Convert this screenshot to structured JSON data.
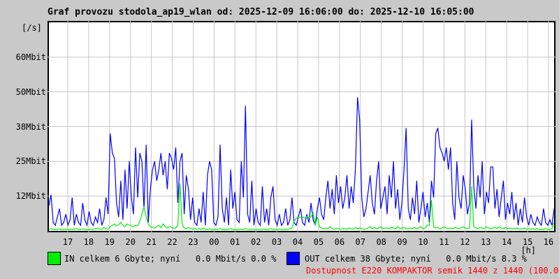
{
  "title": "Graf provozu stodola_ap19_wlan od: 2025-12-09 16:06:00 do: 2025-12-10 16:05:00",
  "colors": {
    "in_series": "#00ee00",
    "out_series": "#0000ff",
    "alert_text": "#ff0000",
    "background": "#c9c9c9",
    "plot_background": "#ffffff",
    "grid": "#c6c6c6",
    "frame": "#000000"
  },
  "y_axis": {
    "unit_label": "[/s]",
    "ticks": [
      {
        "label": "12Mbit",
        "value": 12.5
      },
      {
        "label": "25Mbit",
        "value": 25
      },
      {
        "label": "38Mbit",
        "value": 37.5
      },
      {
        "label": "50Mbit",
        "value": 50
      },
      {
        "label": "60Mbit",
        "value": 62.5
      }
    ]
  },
  "x_axis": {
    "unit_label": "[h]",
    "tick_labels": [
      "17",
      "18",
      "19",
      "20",
      "21",
      "22",
      "23",
      "00",
      "01",
      "02",
      "03",
      "04",
      "05",
      "06",
      "07",
      "08",
      "09",
      "10",
      "11",
      "12",
      "13",
      "14",
      "15",
      "16"
    ]
  },
  "legend": {
    "in_label": "IN celkem 6 Gbyte; nyní   0.0 Mbit/s 0.0 %",
    "out_label": "OUT celkem 38 Gbyte; nyní   0.0 Mbit/s 8.3 %",
    "availability": "Dostupnost E220 KOMPAKTOR semik 1440 z 1440 (100.0 %)"
  },
  "chart_data": {
    "type": "line",
    "title": "Graf provozu stodola_ap19_wlan od: 2025-12-09 16:06:00 do: 2025-12-10 16:05:00",
    "xlabel": "[h]",
    "ylabel": "[/s]",
    "x_start": "2025-12-09 16:06:00",
    "x_end": "2025-12-10 16:05:00",
    "x_tick_labels": [
      "17",
      "18",
      "19",
      "20",
      "21",
      "22",
      "23",
      "00",
      "01",
      "02",
      "03",
      "04",
      "05",
      "06",
      "07",
      "08",
      "09",
      "10",
      "11",
      "12",
      "13",
      "14",
      "15",
      "16"
    ],
    "ylim": [
      0,
      75
    ],
    "y_tick_values_mbit": [
      12.5,
      25,
      37.5,
      50,
      62.5
    ],
    "grid": true,
    "legend_position": "bottom",
    "sample_interval_minutes": 6,
    "series": [
      {
        "name": "OUT",
        "unit": "Mbit/s",
        "total": "38 Gbyte",
        "now": "0.0 Mbit/s",
        "percent": "8.3 %",
        "values": [
          9,
          13,
          3,
          2,
          5,
          8,
          2,
          3,
          6,
          2,
          4,
          12,
          2,
          6,
          3,
          2,
          10,
          4,
          2,
          7,
          3,
          2,
          5,
          3,
          8,
          2,
          4,
          12,
          6,
          35,
          28,
          26,
          10,
          5,
          18,
          4,
          22,
          8,
          25,
          12,
          6,
          30,
          12,
          28,
          25,
          8,
          31,
          3,
          15,
          22,
          25,
          18,
          22,
          28,
          20,
          25,
          15,
          28,
          26,
          22,
          30,
          10,
          25,
          28,
          6,
          20,
          15,
          4,
          12,
          3,
          2,
          8,
          3,
          14,
          2,
          20,
          25,
          22,
          3,
          2,
          5,
          31,
          8,
          3,
          12,
          2,
          22,
          8,
          14,
          4,
          3,
          25,
          12,
          45,
          6,
          3,
          18,
          2,
          8,
          3,
          2,
          16,
          3,
          8,
          2,
          12,
          16,
          4,
          2,
          6,
          2,
          3,
          8,
          2,
          4,
          12,
          3,
          2,
          5,
          8,
          3,
          2,
          6,
          3,
          10,
          4,
          2,
          8,
          12,
          6,
          4,
          12,
          18,
          8,
          15,
          6,
          20,
          10,
          16,
          8,
          12,
          20,
          8,
          16,
          10,
          22,
          48,
          40,
          12,
          5,
          8,
          14,
          20,
          10,
          6,
          18,
          25,
          8,
          12,
          16,
          6,
          20,
          12,
          25,
          8,
          15,
          4,
          10,
          22,
          37,
          8,
          4,
          12,
          6,
          18,
          3,
          8,
          14,
          5,
          10,
          3,
          18,
          12,
          35,
          37,
          30,
          28,
          25,
          30,
          22,
          30,
          10,
          4,
          25,
          12,
          8,
          20,
          15,
          6,
          10,
          40,
          16,
          8,
          20,
          12,
          25,
          6,
          14,
          10,
          23,
          23,
          8,
          15,
          5,
          12,
          18,
          4,
          10,
          6,
          14,
          4,
          10,
          2,
          8,
          3,
          12,
          5,
          2,
          6,
          3,
          2,
          5,
          3,
          2,
          8,
          3,
          2,
          4,
          2,
          8
        ]
      },
      {
        "name": "IN",
        "unit": "Mbit/s",
        "total": "6 Gbyte",
        "now": "0.0 Mbit/s",
        "percent": "0.0 %",
        "values": [
          0.5,
          0.8,
          0.5,
          0.6,
          0.5,
          0.7,
          0.5,
          0.5,
          0.6,
          0.5,
          0.5,
          0.6,
          0.5,
          0.8,
          0.5,
          0.5,
          0.7,
          0.5,
          0.5,
          0.6,
          0.6,
          0.5,
          0.8,
          1,
          0.7,
          0.5,
          1.2,
          0.8,
          0.6,
          1.5,
          2,
          2.5,
          1.8,
          2.2,
          3,
          2,
          1.5,
          2.5,
          2,
          1.8,
          1.5,
          2,
          1.8,
          3.5,
          6,
          8.5,
          5,
          2.5,
          1.5,
          1.2,
          1,
          1.5,
          2,
          1.2,
          2.5,
          1.5,
          1,
          1.5,
          1.2,
          1,
          1,
          2,
          17,
          2.5,
          1,
          0.8,
          1.2,
          0.8,
          0.6,
          0.8,
          0.6,
          0.8,
          0.5,
          1,
          0.6,
          0.5,
          0.8,
          0.5,
          0.5,
          0.6,
          0.5,
          0.8,
          0.5,
          0.5,
          0.6,
          0.5,
          0.8,
          0.5,
          0.5,
          0.5,
          0.5,
          0.6,
          0.5,
          0.8,
          0.5,
          0.5,
          0.6,
          0.5,
          0.5,
          0.5,
          0.5,
          0.5,
          0.6,
          0.5,
          0.5,
          0.8,
          0.5,
          0.5,
          0.5,
          0.6,
          0.5,
          0.5,
          0.6,
          0.5,
          0.8,
          1,
          3.5,
          4.5,
          5,
          4.8,
          5,
          4.6,
          5.2,
          4.8,
          5,
          6.5,
          2,
          5,
          1.5,
          1,
          0.8,
          1,
          0.8,
          1.5,
          0.8,
          0.6,
          1,
          0.8,
          0.6,
          0.8,
          0.8,
          0.6,
          1,
          0.8,
          0.6,
          1.2,
          0.8,
          1,
          0.8,
          0.6,
          0.8,
          1,
          1.5,
          0.8,
          1.2,
          0.8,
          1,
          1.5,
          0.8,
          1,
          1,
          0.8,
          1.2,
          1,
          0.8,
          1.5,
          0.8,
          1,
          1.2,
          0.8,
          0.8,
          1,
          0.8,
          1.2,
          0.8,
          1,
          1.5,
          0.8,
          1,
          2,
          2,
          11,
          1.5,
          1,
          1.2,
          0.8,
          1,
          1.5,
          1,
          0.8,
          1,
          0.8,
          1.2,
          1,
          0.8,
          1,
          1.5,
          1,
          0.8,
          1,
          16,
          1.5,
          1,
          0.8,
          1.2,
          1,
          0.8,
          1.5,
          1,
          0.8,
          1,
          1.2,
          0.8,
          1.5,
          1,
          0.8,
          1.2,
          0.8,
          1,
          0.8,
          0.8,
          1,
          0.8,
          0.6,
          0.8,
          1,
          0.6,
          0.8,
          0.6,
          0.8,
          0.6,
          0.8,
          0.5,
          0.6,
          0.5,
          0.8,
          0.6,
          0.5,
          0.8,
          3
        ]
      }
    ]
  }
}
